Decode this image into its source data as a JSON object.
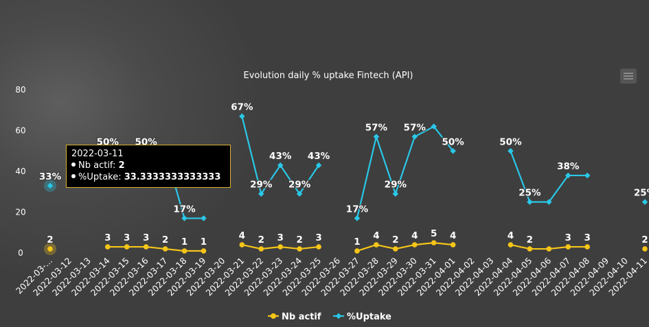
{
  "chart_data": {
    "type": "line",
    "title": "Evolution daily % uptake Fintech (API)",
    "ylim": [
      0,
      80
    ],
    "yticks": [
      "0",
      "20",
      "40",
      "60",
      "80"
    ],
    "categories": [
      "2022-03-...",
      "2022-03-12",
      "2022-03-13",
      "2022-03-14",
      "2022-03-15",
      "2022-03-16",
      "2022-03-17",
      "2022-03-18",
      "2022-03-19",
      "2022-03-20",
      "2022-03-21",
      "2022-03-22",
      "2022-03-23",
      "2022-03-24",
      "2022-03-25",
      "2022-03-26",
      "2022-03-27",
      "2022-03-28",
      "2022-03-29",
      "2022-03-30",
      "2022-03-31",
      "2022-04-01",
      "2022-04-02",
      "2022-04-03",
      "2022-04-04",
      "2022-04-05",
      "2022-04-06",
      "2022-04-07",
      "2022-04-08",
      "2022-04-09",
      "2022-04-10",
      "2022-04-11"
    ],
    "series": [
      {
        "name": "Nb actif",
        "color": "#f5c518",
        "values": [
          2,
          null,
          null,
          3,
          3,
          3,
          2,
          1,
          1,
          null,
          4,
          2,
          3,
          2,
          3,
          null,
          1,
          4,
          2,
          4,
          5,
          4,
          null,
          null,
          4,
          2,
          2,
          3,
          3,
          null,
          null,
          2
        ],
        "labels": [
          "2",
          "",
          "",
          "3",
          "3",
          "3",
          "2",
          "1",
          "1",
          "",
          "4",
          "2",
          "3",
          "2",
          "3",
          "",
          "1",
          "4",
          "2",
          "4",
          "5",
          "4",
          "",
          "",
          "4",
          "2",
          "",
          "3",
          "3",
          "",
          "",
          "2"
        ]
      },
      {
        "name": "%Uptake",
        "color": "#29c8e8",
        "values": [
          33,
          null,
          null,
          50,
          50,
          50,
          50,
          17,
          17,
          null,
          67,
          29,
          43,
          29,
          43,
          null,
          17,
          57,
          29,
          57,
          62,
          50,
          null,
          null,
          50,
          25,
          25,
          38,
          38,
          null,
          null,
          25
        ],
        "labels": [
          "33%",
          "",
          "",
          "50%",
          "",
          "50%",
          "",
          "17%",
          "",
          "",
          "67%",
          "29%",
          "43%",
          "29%",
          "43%",
          "",
          "17%",
          "57%",
          "29%",
          "57%",
          "",
          "50%",
          "",
          "",
          "50%",
          "25%",
          "",
          "38%",
          "",
          "",
          "",
          "25%"
        ]
      }
    ],
    "tooltip": {
      "date": "2022-03-11",
      "line1_label": "Nb actif: ",
      "line1_value": "2",
      "line2_label": "%Uptake: ",
      "line2_value": "33.3333333333333"
    },
    "legend_position": "bottom-center",
    "grid": false
  }
}
